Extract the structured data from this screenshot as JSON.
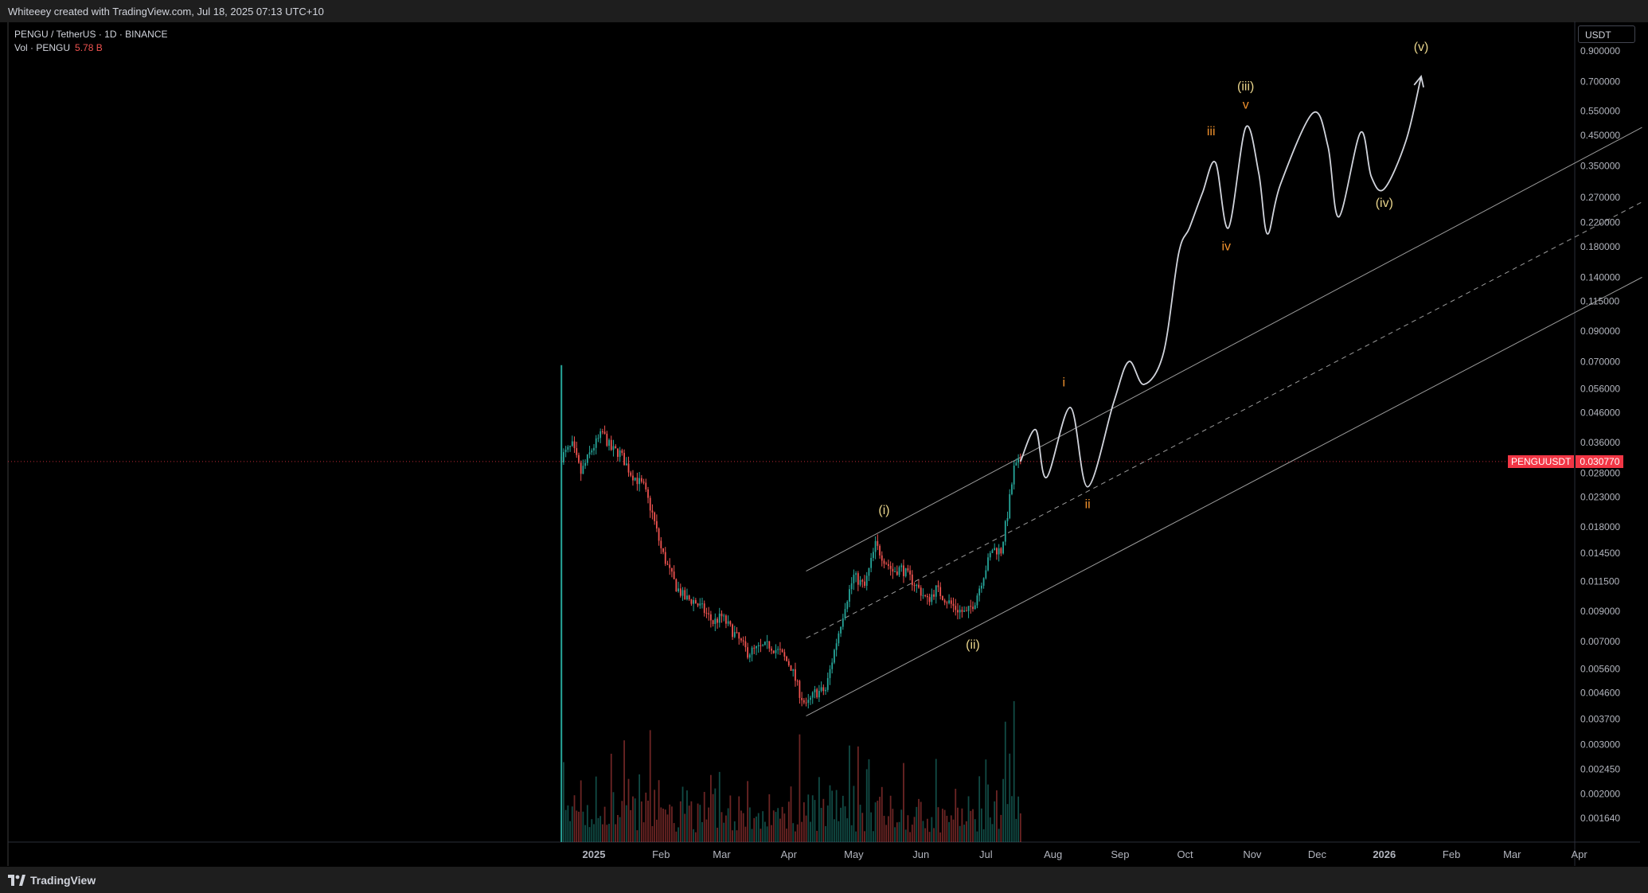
{
  "header": {
    "attribution": "Whiteeey created with TradingView.com, Jul 18, 2025 07:13 UTC+10"
  },
  "legend": {
    "symbol": "PENGU / TetherUS · 1D · BINANCE",
    "volume_label": "Vol · PENGU",
    "volume_value": "5.78 B"
  },
  "footer": {
    "brand": "TradingView"
  },
  "price_axis": {
    "currency": "USDT",
    "ticks": [
      "0.900000",
      "0.700000",
      "0.550000",
      "0.450000",
      "0.350000",
      "0.270000",
      "0.220000",
      "0.180000",
      "0.140000",
      "0.115000",
      "0.090000",
      "0.070000",
      "0.056000",
      "0.046000",
      "0.036000",
      "0.028000",
      "0.023000",
      "0.018000",
      "0.014500",
      "0.011500",
      "0.009000",
      "0.007000",
      "0.005600",
      "0.004600",
      "0.003700",
      "0.003000",
      "0.002450",
      "0.002000",
      "0.001640"
    ]
  },
  "current_price": {
    "symbol": "PENGUUSDT",
    "value": "0.030770"
  },
  "colors": {
    "up": "#26a69a",
    "down": "#ef5350",
    "wave_major": "#e8d48b",
    "wave_minor": "#f0912d",
    "projection": "#d1d4dc",
    "channel": "#9b9b9b",
    "price_line": "#f23645"
  },
  "chart_data": {
    "type": "candlestick",
    "symbol": "PENGU / TetherUS",
    "interval": "1D",
    "exchange": "BINANCE",
    "y_scale": "log",
    "ylim": [
      0.0014,
      1.0
    ],
    "x_ticks": [
      "2025",
      "Feb",
      "Mar",
      "Apr",
      "May",
      "Jun",
      "Jul",
      "Aug",
      "Sep",
      "Oct",
      "Nov",
      "Dec",
      "2026",
      "Feb",
      "Mar",
      "Apr"
    ],
    "last_close": 0.03077,
    "price_path": [
      [
        "2024-12-17",
        0.032
      ],
      [
        "2024-12-22",
        0.035
      ],
      [
        "2024-12-26",
        0.028
      ],
      [
        "2024-12-31",
        0.034
      ],
      [
        "2025-01-05",
        0.039
      ],
      [
        "2025-01-09",
        0.034
      ],
      [
        "2025-01-13",
        0.033
      ],
      [
        "2025-01-18",
        0.028
      ],
      [
        "2025-01-24",
        0.025
      ],
      [
        "2025-01-28",
        0.02
      ],
      [
        "2025-02-01",
        0.015
      ],
      [
        "2025-02-04",
        0.013
      ],
      [
        "2025-02-08",
        0.011
      ],
      [
        "2025-02-12",
        0.01
      ],
      [
        "2025-02-16",
        0.0098
      ],
      [
        "2025-02-20",
        0.0092
      ],
      [
        "2025-02-25",
        0.0082
      ],
      [
        "2025-03-01",
        0.0086
      ],
      [
        "2025-03-05",
        0.0078
      ],
      [
        "2025-03-09",
        0.0071
      ],
      [
        "2025-03-13",
        0.0064
      ],
      [
        "2025-03-18",
        0.0066
      ],
      [
        "2025-03-23",
        0.0068
      ],
      [
        "2025-03-28",
        0.0064
      ],
      [
        "2025-04-02",
        0.0057
      ],
      [
        "2025-04-06",
        0.0046
      ],
      [
        "2025-04-09",
        0.0041
      ],
      [
        "2025-04-13",
        0.0046
      ],
      [
        "2025-04-18",
        0.0047
      ],
      [
        "2025-04-22",
        0.0065
      ],
      [
        "2025-04-27",
        0.0095
      ],
      [
        "2025-05-01",
        0.012
      ],
      [
        "2025-05-06",
        0.011
      ],
      [
        "2025-05-11",
        0.0155
      ],
      [
        "2025-05-15",
        0.0138
      ],
      [
        "2025-05-19",
        0.0125
      ],
      [
        "2025-05-23",
        0.0128
      ],
      [
        "2025-05-27",
        0.0118
      ],
      [
        "2025-05-31",
        0.0108
      ],
      [
        "2025-06-04",
        0.0098
      ],
      [
        "2025-06-08",
        0.0108
      ],
      [
        "2025-06-12",
        0.01
      ],
      [
        "2025-06-17",
        0.0092
      ],
      [
        "2025-06-22",
        0.0088
      ],
      [
        "2025-06-26",
        0.0098
      ],
      [
        "2025-06-30",
        0.0122
      ],
      [
        "2025-07-04",
        0.015
      ],
      [
        "2025-07-08",
        0.0148
      ],
      [
        "2025-07-11",
        0.02
      ],
      [
        "2025-07-14",
        0.029
      ],
      [
        "2025-07-17",
        0.03077
      ]
    ],
    "volume": "5.78 B",
    "projection": [
      [
        "2025-07-17",
        0.0308
      ],
      [
        "2025-07-24",
        0.04
      ],
      [
        "2025-07-29",
        0.027
      ],
      [
        "2025-08-09",
        0.048
      ],
      [
        "2025-08-17",
        0.025
      ],
      [
        "2025-08-29",
        0.05
      ],
      [
        "2025-09-05",
        0.07
      ],
      [
        "2025-09-12",
        0.058
      ],
      [
        "2025-09-21",
        0.075
      ],
      [
        "2025-09-28",
        0.17
      ],
      [
        "2025-10-03",
        0.21
      ],
      [
        "2025-10-09",
        0.28
      ],
      [
        "2025-10-15",
        0.36
      ],
      [
        "2025-10-21",
        0.21
      ],
      [
        "2025-10-29",
        0.48
      ],
      [
        "2025-11-04",
        0.33
      ],
      [
        "2025-11-08",
        0.2
      ],
      [
        "2025-11-14",
        0.3
      ],
      [
        "2025-11-29",
        0.54
      ],
      [
        "2025-12-06",
        0.41
      ],
      [
        "2025-12-11",
        0.23
      ],
      [
        "2025-12-21",
        0.46
      ],
      [
        "2025-12-26",
        0.32
      ],
      [
        "2026-01-01",
        0.29
      ],
      [
        "2026-01-11",
        0.43
      ],
      [
        "2026-01-18",
        0.73
      ]
    ],
    "channel": {
      "lower": [
        [
          "2025-04-09",
          0.0038
        ],
        [
          "2026-04-30",
          0.14
        ]
      ],
      "middle": [
        [
          "2025-04-09",
          0.0072
        ],
        [
          "2026-04-30",
          0.26
        ]
      ],
      "upper": [
        [
          "2025-04-09",
          0.0125
        ],
        [
          "2026-04-30",
          0.48
        ]
      ]
    },
    "wave_labels": [
      {
        "text": "(i)",
        "date": "2025-05-15",
        "price": 0.02,
        "group": "major"
      },
      {
        "text": "(ii)",
        "date": "2025-06-25",
        "price": 0.0066,
        "group": "major"
      },
      {
        "text": "(iii)",
        "date": "2025-10-29",
        "price": 0.65,
        "group": "major"
      },
      {
        "text": "(iv)",
        "date": "2026-01-01",
        "price": 0.25,
        "group": "major"
      },
      {
        "text": "(v)",
        "date": "2026-01-18",
        "price": 0.9,
        "group": "major"
      },
      {
        "text": "i",
        "date": "2025-08-06",
        "price": 0.057,
        "group": "minor"
      },
      {
        "text": "ii",
        "date": "2025-08-17",
        "price": 0.021,
        "group": "minor"
      },
      {
        "text": "iii",
        "date": "2025-10-13",
        "price": 0.45,
        "group": "minor"
      },
      {
        "text": "iv",
        "date": "2025-10-20",
        "price": 0.175,
        "group": "minor"
      },
      {
        "text": "v",
        "date": "2025-10-29",
        "price": 0.56,
        "group": "minor"
      }
    ]
  }
}
